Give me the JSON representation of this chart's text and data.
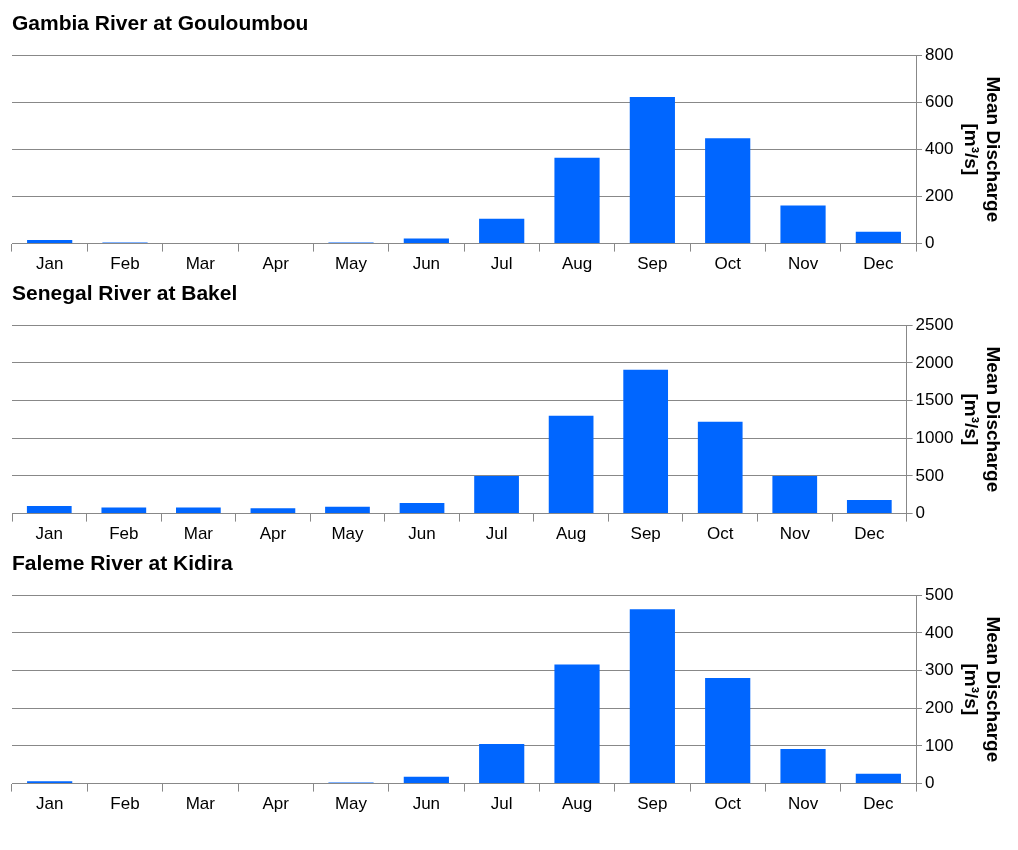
{
  "chart_data": [
    {
      "type": "bar",
      "title": "Gambia River at Gouloumbou",
      "ylabel": "Mean Discharge [m³/s]",
      "categories": [
        "Jan",
        "Feb",
        "Mar",
        "Apr",
        "May",
        "Jun",
        "Jul",
        "Aug",
        "Sep",
        "Oct",
        "Nov",
        "Dec"
      ],
      "values": [
        15,
        5,
        0,
        0,
        5,
        22,
        105,
        365,
        622,
        447,
        162,
        50
      ],
      "color": "#0066ff",
      "ylim": [
        0,
        800
      ],
      "yticks": [
        0,
        200,
        400,
        600,
        800
      ],
      "grid": "y",
      "legend": false
    },
    {
      "type": "bar",
      "title": "Senegal River at Bakel",
      "ylabel": "Mean Discharge [m³/s]",
      "categories": [
        "Jan",
        "Feb",
        "Mar",
        "Apr",
        "May",
        "Jun",
        "Jul",
        "Aug",
        "Sep",
        "Oct",
        "Nov",
        "Dec"
      ],
      "values": [
        100,
        80,
        80,
        70,
        90,
        140,
        500,
        1300,
        1910,
        1220,
        500,
        180
      ],
      "color": "#0066ff",
      "ylim": [
        0,
        2500
      ],
      "yticks": [
        0,
        500,
        1000,
        1500,
        2000,
        2500
      ],
      "grid": "y",
      "legend": false
    },
    {
      "type": "bar",
      "title": "Faleme River at Kidira",
      "ylabel": "Mean Discharge [m³/s]",
      "categories": [
        "Jan",
        "Feb",
        "Mar",
        "Apr",
        "May",
        "Jun",
        "Jul",
        "Aug",
        "Sep",
        "Oct",
        "Nov",
        "Dec"
      ],
      "values": [
        6,
        0,
        0,
        0,
        3,
        18,
        105,
        316,
        463,
        280,
        92,
        26
      ],
      "color": "#0066ff",
      "ylim": [
        0,
        500
      ],
      "yticks": [
        0,
        100,
        200,
        300,
        400,
        500
      ],
      "grid": "y",
      "legend": false
    }
  ]
}
